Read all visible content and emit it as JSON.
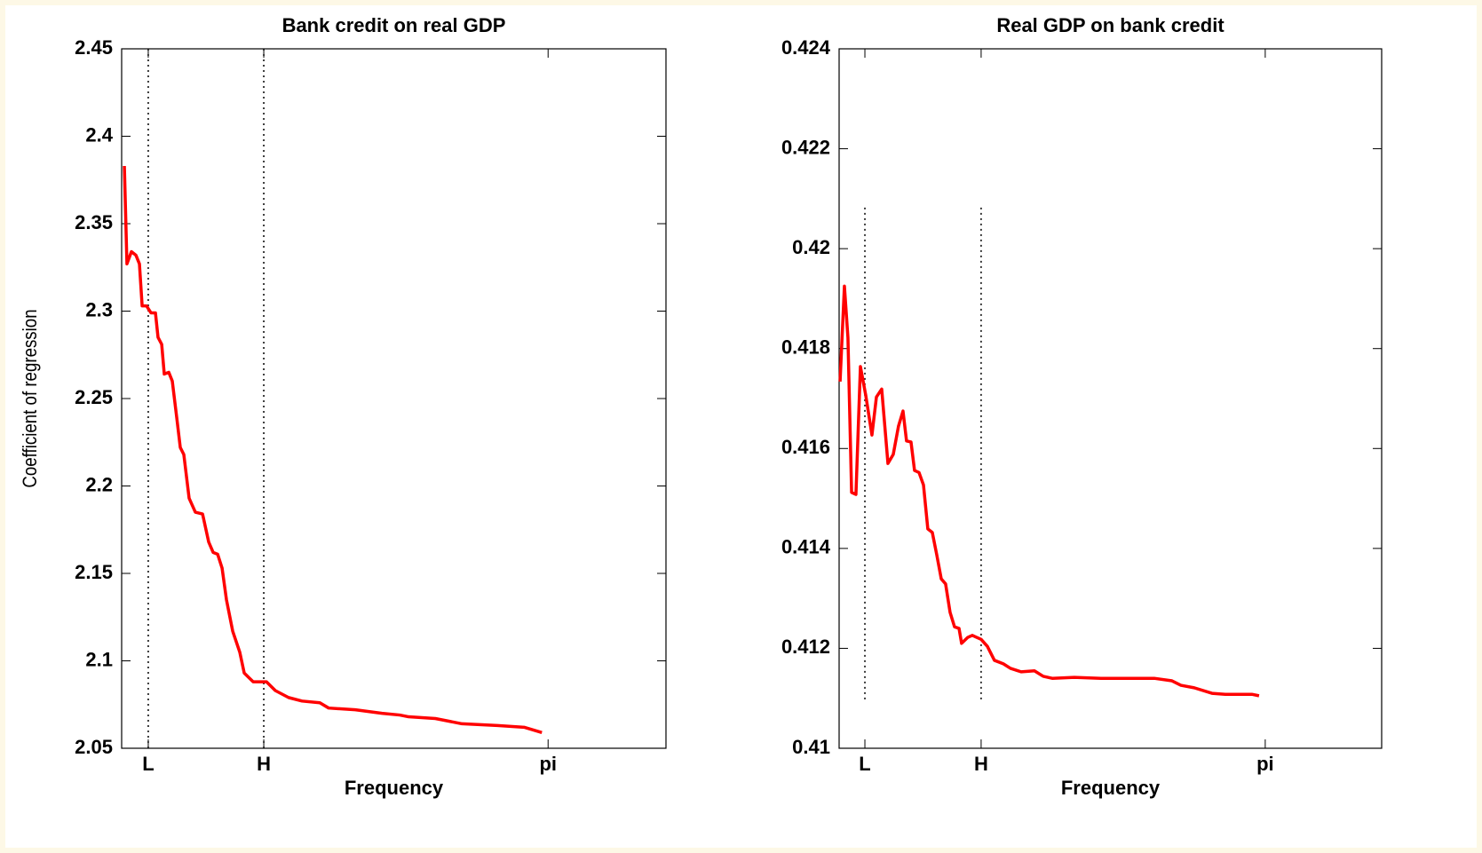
{
  "chart_data": [
    {
      "type": "line",
      "title": "Bank credit on real GDP",
      "x_label": "Frequency",
      "y_label": "Coefficient of regression",
      "color": "#ff0000",
      "xlim": [
        0,
        4.01
      ],
      "ylim": [
        2.05,
        2.45
      ],
      "xticks": [
        {
          "value": 0.196,
          "label": "L"
        },
        {
          "value": 1.047,
          "label": "H"
        },
        {
          "value": 3.1416,
          "label": "pi"
        }
      ],
      "yticks": [
        2.05,
        2.1,
        2.15,
        2.2,
        2.25,
        2.3,
        2.35,
        2.4,
        2.45
      ],
      "vlines": [
        {
          "x": 0.196,
          "ymin": 2.05,
          "ymax": 2.45
        },
        {
          "x": 1.047,
          "ymin": 2.05,
          "ymax": 2.45
        }
      ],
      "x": [
        0.02,
        0.039,
        0.072,
        0.105,
        0.131,
        0.151,
        0.183,
        0.216,
        0.249,
        0.268,
        0.295,
        0.314,
        0.347,
        0.373,
        0.406,
        0.432,
        0.458,
        0.497,
        0.543,
        0.596,
        0.641,
        0.674,
        0.707,
        0.74,
        0.772,
        0.818,
        0.87,
        0.903,
        0.969,
        1.067,
        1.132,
        1.23,
        1.329,
        1.46,
        1.525,
        1.721,
        1.918,
        2.049,
        2.114,
        2.311,
        2.507,
        2.769,
        2.965,
        3.096
      ],
      "values": [
        2.383,
        2.327,
        2.334,
        2.332,
        2.327,
        2.303,
        2.303,
        2.299,
        2.299,
        2.285,
        2.281,
        2.264,
        2.265,
        2.26,
        2.239,
        2.222,
        2.218,
        2.193,
        2.185,
        2.184,
        2.168,
        2.162,
        2.161,
        2.153,
        2.135,
        2.117,
        2.105,
        2.093,
        2.088,
        2.088,
        2.083,
        2.079,
        2.077,
        2.076,
        2.073,
        2.072,
        2.07,
        2.069,
        2.068,
        2.067,
        2.064,
        2.063,
        2.062,
        2.059
      ]
    },
    {
      "type": "line",
      "title": "Real GDP on bank credit",
      "x_label": "Frequency",
      "color": "#ff0000",
      "xlim": [
        0,
        4.0
      ],
      "ylim": [
        0.41,
        0.424
      ],
      "xticks": [
        {
          "value": 0.19,
          "label": "L"
        },
        {
          "value": 1.047,
          "label": "H"
        },
        {
          "value": 3.1416,
          "label": "pi"
        }
      ],
      "yticks": [
        0.41,
        0.412,
        0.414,
        0.416,
        0.418,
        0.42,
        0.422,
        0.424
      ],
      "vlines": [
        {
          "x": 0.19,
          "ymin": 0.41098,
          "ymax": 0.42089
        },
        {
          "x": 1.047,
          "ymin": 0.41098,
          "ymax": 0.42089
        }
      ],
      "x": [
        0.007,
        0.039,
        0.065,
        0.092,
        0.124,
        0.157,
        0.196,
        0.242,
        0.275,
        0.314,
        0.36,
        0.399,
        0.438,
        0.471,
        0.497,
        0.53,
        0.556,
        0.589,
        0.622,
        0.654,
        0.687,
        0.72,
        0.753,
        0.785,
        0.818,
        0.851,
        0.884,
        0.903,
        0.949,
        0.982,
        1.014,
        1.047,
        1.093,
        1.145,
        1.211,
        1.263,
        1.342,
        1.44,
        1.505,
        1.571,
        1.734,
        1.931,
        2.062,
        2.192,
        2.323,
        2.454,
        2.52,
        2.618,
        2.749,
        2.847,
        2.945,
        3.043,
        3.096
      ],
      "values": [
        0.41734,
        0.41925,
        0.41822,
        0.41512,
        0.41508,
        0.41764,
        0.41707,
        0.41627,
        0.41703,
        0.41719,
        0.4157,
        0.41588,
        0.41645,
        0.41675,
        0.41615,
        0.41613,
        0.41556,
        0.41552,
        0.41527,
        0.41439,
        0.41432,
        0.41387,
        0.41339,
        0.41329,
        0.41272,
        0.41243,
        0.4124,
        0.4121,
        0.41222,
        0.41226,
        0.41222,
        0.41218,
        0.41204,
        0.41176,
        0.41169,
        0.4116,
        0.41153,
        0.41155,
        0.41144,
        0.4114,
        0.41142,
        0.4114,
        0.4114,
        0.4114,
        0.4114,
        0.41135,
        0.41126,
        0.41121,
        0.4111,
        0.41108,
        0.41108,
        0.41108,
        0.41105
      ]
    }
  ]
}
